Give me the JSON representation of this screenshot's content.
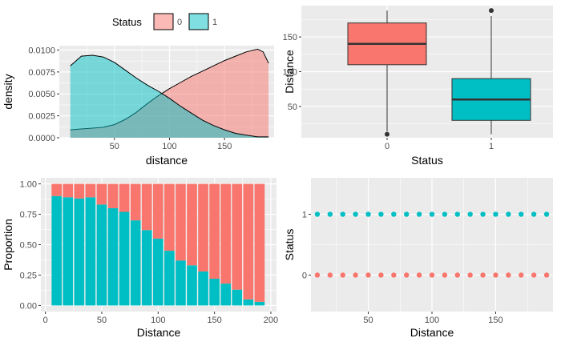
{
  "legend": {
    "title": "Status",
    "entries": [
      {
        "label": "0",
        "fill": "#F8766D"
      },
      {
        "label": "1",
        "fill": "#00BFC4"
      }
    ]
  },
  "colors": {
    "status_0": "#F8766D",
    "status_1": "#00BFC4",
    "panel_bg": "#EBEBEB",
    "grid": "#FFFFFF",
    "tick_text": "#4D4D4D"
  },
  "chart_data": [
    {
      "type": "area",
      "panel": "top-left",
      "xlabel": "distance",
      "ylabel": "density",
      "xlim": [
        0,
        195
      ],
      "ylim": [
        0,
        0.0105
      ],
      "xticks": [
        "50",
        "100",
        "150"
      ],
      "yticks": [
        "0.0000",
        "0.0025",
        "0.0050",
        "0.0075",
        "0.0100"
      ],
      "series": [
        {
          "name": "0",
          "x": [
            10,
            20,
            30,
            40,
            50,
            60,
            70,
            80,
            90,
            100,
            110,
            120,
            130,
            140,
            150,
            160,
            170,
            180,
            185,
            190
          ],
          "y": [
            0.0009,
            0.001,
            0.0011,
            0.0012,
            0.0015,
            0.0021,
            0.0029,
            0.0039,
            0.0048,
            0.0056,
            0.0063,
            0.007,
            0.0076,
            0.0082,
            0.0088,
            0.0093,
            0.0098,
            0.0101,
            0.0098,
            0.0085
          ]
        },
        {
          "name": "1",
          "x": [
            10,
            20,
            30,
            40,
            50,
            60,
            70,
            80,
            90,
            100,
            110,
            120,
            130,
            140,
            150,
            160,
            170,
            180,
            190
          ],
          "y": [
            0.0082,
            0.0093,
            0.0094,
            0.0092,
            0.0086,
            0.0077,
            0.0068,
            0.006,
            0.0053,
            0.0045,
            0.0036,
            0.0028,
            0.002,
            0.0014,
            0.0009,
            0.0005,
            0.0003,
            0.0001,
            0.0001
          ]
        }
      ]
    },
    {
      "type": "box",
      "panel": "top-right",
      "xlabel": "Status",
      "ylabel": "Distance",
      "categories": [
        "0",
        "1"
      ],
      "ylim": [
        5,
        195
      ],
      "yticks": [
        50,
        100,
        150
      ],
      "boxes": [
        {
          "name": "0",
          "min": 14,
          "q1": 110,
          "median": 140,
          "q3": 170,
          "max": 188,
          "outliers": [
            10
          ]
        },
        {
          "name": "1",
          "min": 10,
          "q1": 30,
          "median": 60,
          "q3": 90,
          "max": 180,
          "outliers": [
            188
          ]
        }
      ]
    },
    {
      "type": "bar",
      "panel": "bottom-left",
      "stacked": true,
      "xlabel": "Distance",
      "ylabel": "Proportion",
      "xlim": [
        0,
        200
      ],
      "ylim": [
        0,
        1
      ],
      "xticks": [
        0,
        50,
        100,
        150,
        200
      ],
      "yticks": [
        "0.00",
        "0.25",
        "0.50",
        "0.75",
        "1.00"
      ],
      "x": [
        10,
        20,
        30,
        40,
        50,
        60,
        70,
        80,
        90,
        100,
        110,
        120,
        130,
        140,
        150,
        160,
        170,
        180,
        190
      ],
      "series": [
        {
          "name": "1",
          "values": [
            0.9,
            0.89,
            0.88,
            0.89,
            0.83,
            0.8,
            0.77,
            0.7,
            0.62,
            0.55,
            0.45,
            0.37,
            0.33,
            0.28,
            0.22,
            0.18,
            0.13,
            0.05,
            0.03
          ]
        },
        {
          "name": "0",
          "values": [
            0.1,
            0.11,
            0.12,
            0.11,
            0.17,
            0.2,
            0.23,
            0.3,
            0.38,
            0.45,
            0.55,
            0.63,
            0.67,
            0.72,
            0.78,
            0.82,
            0.87,
            0.95,
            0.97
          ]
        }
      ]
    },
    {
      "type": "scatter",
      "panel": "bottom-right",
      "xlabel": "Distance",
      "ylabel": "Status",
      "xlim": [
        5,
        195
      ],
      "ylim": [
        -0.6,
        1.6
      ],
      "xticks": [
        50,
        100,
        150
      ],
      "yticks": [
        "0",
        "1"
      ],
      "x": [
        10,
        20,
        30,
        40,
        50,
        60,
        70,
        80,
        90,
        100,
        110,
        120,
        130,
        140,
        150,
        160,
        170,
        180,
        190
      ],
      "series": [
        {
          "name": "0",
          "y": 0
        },
        {
          "name": "1",
          "y": 1
        }
      ]
    }
  ]
}
